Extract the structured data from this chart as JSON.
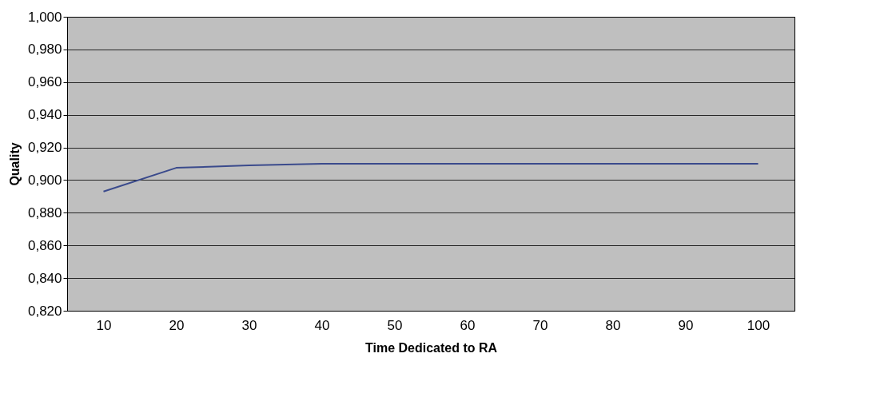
{
  "chart_data": {
    "type": "line",
    "xlabel": "Time Dedicated to RA",
    "ylabel": "Quality",
    "categories": [
      "10",
      "20",
      "30",
      "40",
      "50",
      "60",
      "70",
      "80",
      "90",
      "100"
    ],
    "series": [
      {
        "color": "#3a4a8c",
        "values": [
          0.893,
          0.9075,
          0.909,
          0.91,
          0.91,
          0.91,
          0.91,
          0.91,
          0.91,
          0.91
        ]
      }
    ],
    "ylim": [
      0.82,
      1.0
    ],
    "yticks": [
      {
        "value": 0.82,
        "label": "0,820"
      },
      {
        "value": 0.84,
        "label": "0,840"
      },
      {
        "value": 0.86,
        "label": "0,860"
      },
      {
        "value": 0.88,
        "label": "0,880"
      },
      {
        "value": 0.9,
        "label": "0,900"
      },
      {
        "value": 0.92,
        "label": "0,920"
      },
      {
        "value": 0.94,
        "label": "0,940"
      },
      {
        "value": 0.96,
        "label": "0,960"
      },
      {
        "value": 0.98,
        "label": "0,980"
      },
      {
        "value": 1.0,
        "label": "1,000"
      }
    ],
    "grid": "y",
    "legend": false,
    "marker": "none",
    "line_style": "solid"
  }
}
